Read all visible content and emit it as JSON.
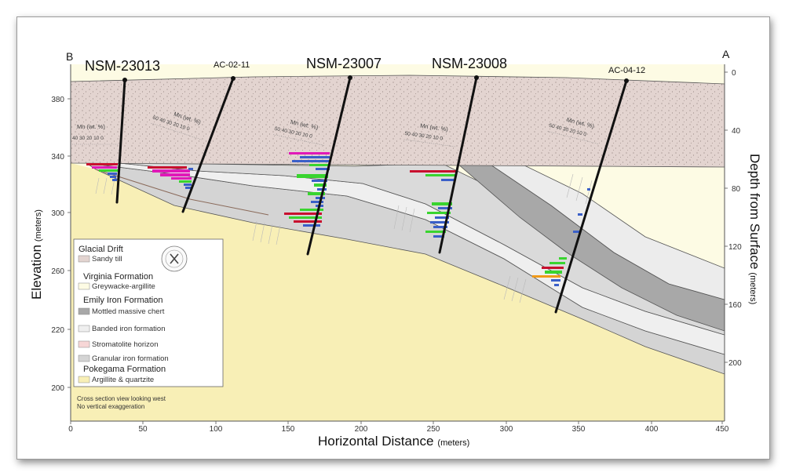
{
  "section_ends": {
    "left": "B",
    "right": "A"
  },
  "drillholes": [
    {
      "name": "NSM-23013",
      "size": "large"
    },
    {
      "name": "AC-02-11",
      "size": "small"
    },
    {
      "name": "NSM-23007",
      "size": "large"
    },
    {
      "name": "NSM-23008",
      "size": "large"
    },
    {
      "name": "AC-04-12",
      "size": "small"
    }
  ],
  "mn_scales": [
    {
      "label": "Mn (wt. %)",
      "ticks": "40  30  20  10   0"
    },
    {
      "label": "Mn (wt. %)",
      "ticks": "50  40  30  20  10   0"
    },
    {
      "label": "Mn (wt. %)",
      "ticks": "50  40  30  20  10   0"
    },
    {
      "label": "Mn (wt. %)",
      "ticks": "50  40  30  20  10   0"
    },
    {
      "label": "Mn (wt. %)",
      "ticks": "50  40  30  20  10   0"
    }
  ],
  "axes": {
    "x": {
      "title": "Horizontal Distance",
      "unit": "(meters)",
      "ticks": [
        "0",
        "50",
        "100",
        "150",
        "200",
        "250",
        "300",
        "350",
        "400",
        "450"
      ]
    },
    "y_left": {
      "title": "Elevation",
      "unit": "(meters)",
      "ticks": [
        "380",
        "340",
        "300",
        "260",
        "220",
        "200"
      ]
    },
    "y_right": {
      "title": "Depth from Surface",
      "unit": "(meters)",
      "ticks": [
        "0",
        "40",
        "80",
        "120",
        "160",
        "200"
      ]
    }
  },
  "legend": {
    "groups": [
      {
        "title": "Glacial Drift",
        "items": [
          {
            "label": "Sandy till",
            "color": "#e3d4d0"
          }
        ]
      },
      {
        "title": "Virginia Formation",
        "items": [
          {
            "label": "Greywacke-argillite",
            "color": "#fdfbe4"
          }
        ]
      },
      {
        "title": "Emily Iron Formation",
        "items": [
          {
            "label": "Mottled massive chert",
            "color": "#a8a8a8"
          },
          {
            "label": "Banded iron formation",
            "color": "#efefef"
          },
          {
            "label": "Stromatolite horizon",
            "color": "#f7d6d6"
          },
          {
            "label": "Granular iron formation",
            "color": "#d4d4d4"
          }
        ]
      },
      {
        "title": "Pokegama Formation",
        "items": [
          {
            "label": "Argillite & quartzite",
            "color": "#f8efb6"
          }
        ]
      }
    ]
  },
  "notes": [
    "Cross section view looking west",
    "No vertical exaggeration"
  ],
  "colors": {
    "till": "#e3d4d0",
    "virginia": "#fdfbe4",
    "pokegama": "#f8efb6",
    "chert": "#a8a8a8",
    "bif": "#efefef",
    "granular": "#d4d4d4",
    "mn_blue": "#3a5fc8",
    "mn_green": "#39d42f",
    "mn_magenta": "#e019b8",
    "mn_red": "#c8102e",
    "mn_orange": "#f09a1a"
  }
}
